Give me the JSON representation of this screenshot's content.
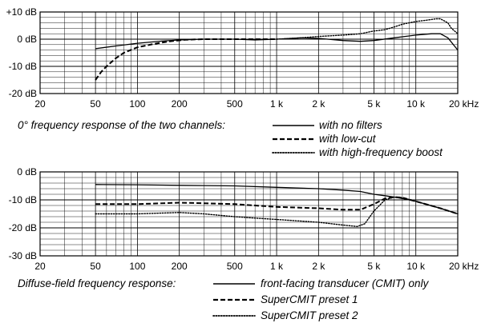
{
  "chart_data": [
    {
      "type": "line",
      "x_scale": "log",
      "xlim": [
        20,
        20000
      ],
      "ylim": [
        -20,
        10
      ],
      "grid": true,
      "x_ticks": [
        {
          "value": 20,
          "label": "20"
        },
        {
          "value": 50,
          "label": "50"
        },
        {
          "value": 100,
          "label": "100"
        },
        {
          "value": 200,
          "label": "200"
        },
        {
          "value": 500,
          "label": "500"
        },
        {
          "value": 1000,
          "label": "1 k"
        },
        {
          "value": 2000,
          "label": "2 k"
        },
        {
          "value": 5000,
          "label": "5 k"
        },
        {
          "value": 10000,
          "label": "10 k"
        },
        {
          "value": 20000,
          "label": "20 kHz"
        }
      ],
      "y_ticks": [
        {
          "value": 10,
          "label": "+10 dB"
        },
        {
          "value": 0,
          "label": "0 dB"
        },
        {
          "value": -10,
          "label": "-10 dB"
        },
        {
          "value": -20,
          "label": "-20 dB"
        }
      ],
      "legend_title": "0° frequency response of the two channels:",
      "series": [
        {
          "name": "with no filters",
          "style": "solid",
          "points": [
            [
              50,
              -3.5
            ],
            [
              70,
              -2.5
            ],
            [
              100,
              -1.5
            ],
            [
              150,
              -0.7
            ],
            [
              200,
              -0.3
            ],
            [
              300,
              0
            ],
            [
              500,
              0
            ],
            [
              700,
              -0.3
            ],
            [
              1000,
              0
            ],
            [
              1500,
              0.5
            ],
            [
              2000,
              0.3
            ],
            [
              3000,
              -0.5
            ],
            [
              4000,
              -0.8
            ],
            [
              5000,
              -0.5
            ],
            [
              7000,
              0.5
            ],
            [
              10000,
              1.5
            ],
            [
              13000,
              2
            ],
            [
              15000,
              2
            ],
            [
              17000,
              0.5
            ],
            [
              20000,
              -4
            ]
          ]
        },
        {
          "name": "with low-cut",
          "style": "dashed",
          "points": [
            [
              50,
              -15
            ],
            [
              55,
              -12
            ],
            [
              60,
              -10
            ],
            [
              70,
              -7
            ],
            [
              80,
              -5
            ],
            [
              100,
              -3
            ],
            [
              130,
              -1.8
            ],
            [
              170,
              -0.8
            ],
            [
              220,
              -0.2
            ],
            [
              300,
              0
            ],
            [
              500,
              0
            ],
            [
              1000,
              0
            ]
          ]
        },
        {
          "name": "with high-frequency boost",
          "style": "dotted",
          "points": [
            [
              1000,
              0
            ],
            [
              1500,
              0.5
            ],
            [
              2000,
              1
            ],
            [
              3000,
              1.5
            ],
            [
              4000,
              2
            ],
            [
              5000,
              3
            ],
            [
              6000,
              3.5
            ],
            [
              7000,
              4.5
            ],
            [
              8000,
              5.5
            ],
            [
              10000,
              6.5
            ],
            [
              12000,
              7
            ],
            [
              14000,
              7.5
            ],
            [
              15000,
              7.5
            ],
            [
              17000,
              6
            ],
            [
              18000,
              4
            ],
            [
              20000,
              2
            ]
          ]
        }
      ]
    },
    {
      "type": "line",
      "x_scale": "log",
      "xlim": [
        20,
        20000
      ],
      "ylim": [
        -30,
        0
      ],
      "grid": true,
      "x_ticks": [
        {
          "value": 20,
          "label": "20"
        },
        {
          "value": 50,
          "label": "50"
        },
        {
          "value": 100,
          "label": "100"
        },
        {
          "value": 200,
          "label": "200"
        },
        {
          "value": 500,
          "label": "500"
        },
        {
          "value": 1000,
          "label": "1 k"
        },
        {
          "value": 2000,
          "label": "2 k"
        },
        {
          "value": 5000,
          "label": "5 k"
        },
        {
          "value": 10000,
          "label": "10 k"
        },
        {
          "value": 20000,
          "label": "20 kHz"
        }
      ],
      "y_ticks": [
        {
          "value": 0,
          "label": "0 dB"
        },
        {
          "value": -10,
          "label": "-10 dB"
        },
        {
          "value": -20,
          "label": "-20 dB"
        },
        {
          "value": -30,
          "label": "-30 dB"
        }
      ],
      "legend_title": "Diffuse-field frequency response:",
      "series": [
        {
          "name": "front-facing transducer (CMIT) only",
          "style": "solid",
          "points": [
            [
              50,
              -4.5
            ],
            [
              100,
              -4.6
            ],
            [
              200,
              -4.8
            ],
            [
              500,
              -5
            ],
            [
              1000,
              -5.5
            ],
            [
              2000,
              -6
            ],
            [
              3000,
              -6.5
            ],
            [
              4000,
              -7
            ],
            [
              5000,
              -8
            ],
            [
              6000,
              -8.5
            ],
            [
              7000,
              -9
            ],
            [
              8000,
              -9.5
            ],
            [
              10000,
              -10.5
            ],
            [
              15000,
              -13
            ],
            [
              20000,
              -15
            ]
          ]
        },
        {
          "name": "SuperCMIT preset 1",
          "style": "dashed",
          "points": [
            [
              50,
              -11.5
            ],
            [
              100,
              -11.5
            ],
            [
              200,
              -11
            ],
            [
              300,
              -11.2
            ],
            [
              500,
              -11.5
            ],
            [
              700,
              -12
            ],
            [
              1000,
              -12.5
            ],
            [
              2000,
              -13
            ],
            [
              3000,
              -13.5
            ],
            [
              4000,
              -13.5
            ],
            [
              5000,
              -11.5
            ],
            [
              6000,
              -9.5
            ],
            [
              7000,
              -9
            ],
            [
              8000,
              -9.2
            ],
            [
              10000,
              -10.5
            ],
            [
              15000,
              -13
            ],
            [
              20000,
              -15
            ]
          ]
        },
        {
          "name": "SuperCMIT preset 2",
          "style": "dotted",
          "points": [
            [
              50,
              -15
            ],
            [
              100,
              -15
            ],
            [
              200,
              -14.5
            ],
            [
              300,
              -15
            ],
            [
              500,
              -16
            ],
            [
              700,
              -16.5
            ],
            [
              1000,
              -17
            ],
            [
              2000,
              -18
            ],
            [
              3000,
              -19
            ],
            [
              3800,
              -19.5
            ],
            [
              4300,
              -18.5
            ],
            [
              5000,
              -14
            ],
            [
              6000,
              -10
            ],
            [
              7000,
              -9
            ],
            [
              8000,
              -9.2
            ],
            [
              10000,
              -10.5
            ],
            [
              15000,
              -13
            ],
            [
              20000,
              -15
            ]
          ]
        }
      ]
    }
  ]
}
